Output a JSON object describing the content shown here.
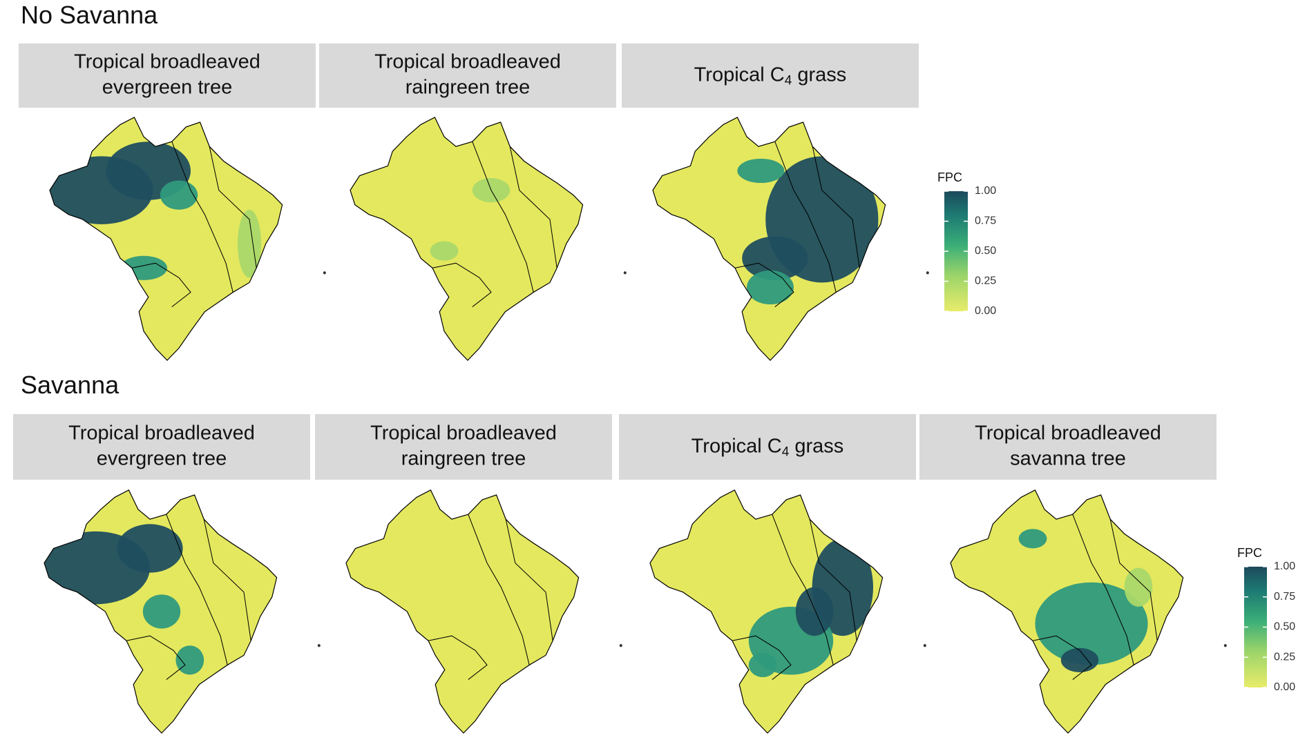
{
  "sections": [
    {
      "title": "No Savanna",
      "panels": [
        {
          "label_lines": [
            "Tropical broadleaved",
            "evergreen tree"
          ]
        },
        {
          "label_lines": [
            "Tropical broadleaved",
            "raingreen tree"
          ]
        },
        {
          "label_parts": {
            "text": "Tropical C",
            "subscript": "4",
            "tail": " grass"
          }
        }
      ],
      "colorbar": {
        "title": "FPC",
        "lim": [
          0,
          1
        ],
        "ticks": [
          {
            "value": 0,
            "label": "0.00"
          },
          {
            "value": 0.25,
            "label": "0.25"
          },
          {
            "value": 0.5,
            "label": "0.50"
          },
          {
            "value": 0.75,
            "label": "0.75"
          },
          {
            "value": 1,
            "label": "1.00"
          }
        ]
      }
    },
    {
      "title": "Savanna",
      "panels": [
        {
          "label_lines": [
            "Tropical broadleaved",
            "evergreen tree"
          ]
        },
        {
          "label_lines": [
            "Tropical broadleaved",
            "raingreen tree"
          ]
        },
        {
          "label_parts": {
            "text": "Tropical C",
            "subscript": "4",
            "tail": " grass"
          }
        },
        {
          "label_lines": [
            "Tropical broadleaved",
            "savanna tree"
          ]
        }
      ],
      "colorbar": {
        "title": "FPC",
        "lim": [
          0,
          1
        ],
        "ticks": [
          {
            "value": 0,
            "label": "0.00"
          },
          {
            "value": 0.25,
            "label": "0.25"
          },
          {
            "value": 0.5,
            "label": "0.50"
          },
          {
            "value": 0.75,
            "label": "0.75"
          },
          {
            "value": 1,
            "label": "1.00"
          }
        ]
      }
    }
  ]
}
